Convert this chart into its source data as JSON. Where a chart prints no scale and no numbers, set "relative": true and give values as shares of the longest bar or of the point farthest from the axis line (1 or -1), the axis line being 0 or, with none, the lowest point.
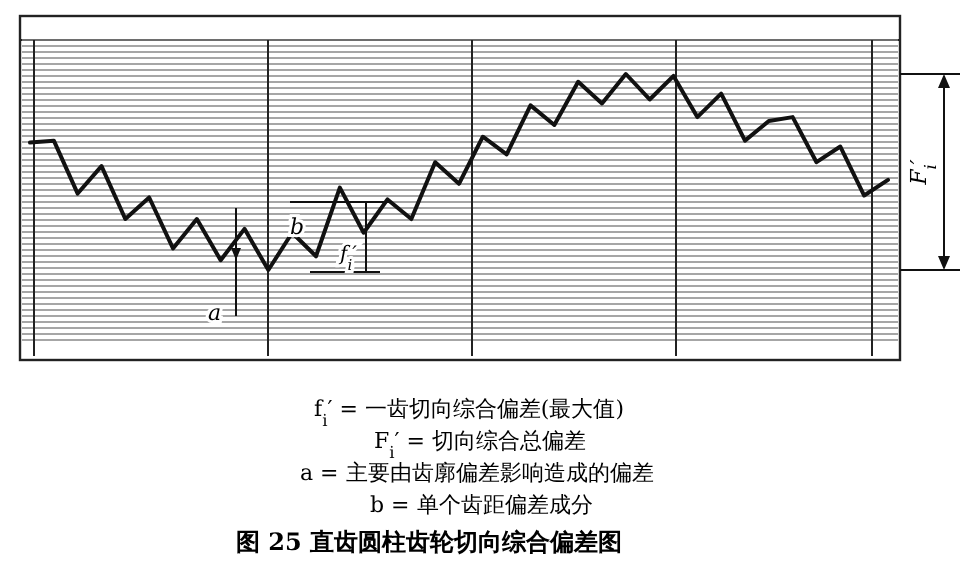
{
  "chart_data": {
    "type": "line",
    "title": "图 25  直齿圆柱齿轮切向综合偏差图",
    "relative": true,
    "grid": true,
    "marker": "none",
    "line_style": "solid",
    "categories": [
      null,
      null,
      null,
      null,
      null,
      null,
      null,
      null,
      null,
      null,
      null,
      null,
      null,
      null,
      null,
      null,
      null,
      null,
      null,
      null,
      null,
      null,
      null,
      null,
      null,
      null,
      null,
      null,
      null,
      null,
      null,
      null,
      null,
      null,
      null,
      null,
      null
    ],
    "series": [
      {
        "color": "#111111",
        "values": [
          0.65,
          0.66,
          0.39,
          0.53,
          0.26,
          0.37,
          0.11,
          0.26,
          0.05,
          0.21,
          0,
          0.19,
          0.07,
          0.42,
          0.19,
          0.36,
          0.26,
          0.55,
          0.44,
          0.68,
          0.59,
          0.84,
          0.74,
          0.96,
          0.85,
          1,
          0.87,
          0.99,
          0.78,
          0.9,
          0.66,
          0.76,
          0.78,
          0.55,
          0.63,
          0.38,
          0.46
        ]
      }
    ],
    "annotations": [
      "a",
      "b",
      "f$_{i}$′",
      "F$_{i}$′",
      "f$_{i}$′ = 一齿切向综合偏差(最大值)",
      "F$_{i}$′ = 切向综合总偏差",
      "a = 主要由齿廓偏差影响造成的偏差",
      "b = 单个齿距偏差成分"
    ]
  }
}
